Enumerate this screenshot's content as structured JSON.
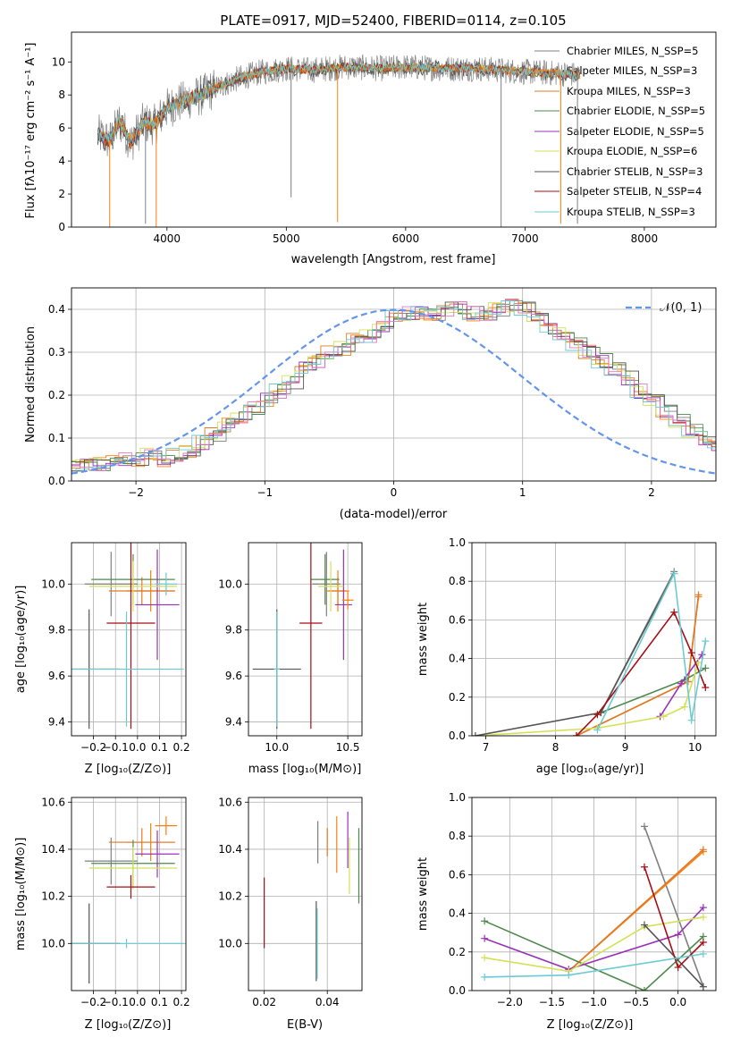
{
  "chart_data": [
    {
      "id": "spectrum",
      "type": "line",
      "title": "PLATE=0917, MJD=52400, FIBERID=0114, z=0.105",
      "xlabel": "wavelength [Angstrom, rest frame]",
      "ylabel": "Flux [fλ10⁻¹⁷ erg cm⁻² s⁻¹ A⁻¹]",
      "xlim": [
        3200,
        8600
      ],
      "ylim": [
        0,
        11.8
      ],
      "xticks": [
        4000,
        5000,
        6000,
        7000,
        8000
      ],
      "yticks": [
        0,
        2,
        4,
        6,
        8,
        10
      ],
      "grid": false,
      "legend_placement": "upper-right",
      "continuum": [
        [
          3420,
          5.6
        ],
        [
          3520,
          5.2
        ],
        [
          3600,
          6.4
        ],
        [
          3700,
          5.1
        ],
        [
          3800,
          6.3
        ],
        [
          3900,
          6.2
        ],
        [
          4000,
          7.2
        ],
        [
          4100,
          7.5
        ],
        [
          4200,
          7.8
        ],
        [
          4300,
          8.0
        ],
        [
          4400,
          8.4
        ],
        [
          4500,
          8.7
        ],
        [
          4600,
          9.0
        ],
        [
          4800,
          9.4
        ],
        [
          5000,
          9.6
        ],
        [
          5200,
          9.5
        ],
        [
          5500,
          9.7
        ],
        [
          5800,
          9.6
        ],
        [
          6000,
          9.7
        ],
        [
          6300,
          9.6
        ],
        [
          6600,
          9.6
        ],
        [
          7000,
          9.4
        ],
        [
          7300,
          9.3
        ],
        [
          7460,
          9.2
        ]
      ],
      "spikes": [
        [
          3520,
          0.0
        ],
        [
          3820,
          0.2
        ],
        [
          3910,
          0.0
        ],
        [
          5040,
          1.8
        ],
        [
          5430,
          0.3
        ],
        [
          6800,
          0.0
        ],
        [
          7300,
          0.2
        ],
        [
          7440,
          0.2
        ]
      ],
      "series": [
        {
          "name": "Chabrier MILES, N_SSP=5"
        },
        {
          "name": "Salpeter MILES, N_SSP=3"
        },
        {
          "name": "Kroupa MILES, N_SSP=3"
        },
        {
          "name": "Chabrier ELODIE, N_SSP=5"
        },
        {
          "name": "Salpeter ELODIE, N_SSP=5"
        },
        {
          "name": "Kroupa ELODIE, N_SSP=6"
        },
        {
          "name": "Chabrier STELIB, N_SSP=3"
        },
        {
          "name": "Salpeter STELIB, N_SSP=4"
        },
        {
          "name": "Kroupa STELIB, N_SSP=3"
        }
      ]
    },
    {
      "id": "residuals",
      "type": "line",
      "xlabel": "(data-model)/error",
      "ylabel": "Normed distribution",
      "xlim": [
        -2.5,
        2.5
      ],
      "ylim": [
        0,
        0.45
      ],
      "xticks": [
        -2,
        -1,
        0,
        1,
        2
      ],
      "yticks": [
        0.0,
        0.1,
        0.2,
        0.3,
        0.4
      ],
      "grid": true,
      "legend_placement": "upper-right",
      "legend": "𝒩(0, 1)",
      "bin_width": 0.1,
      "bins_start": -2.5,
      "histogram_envelope": [
        0.03,
        0.04,
        0.04,
        0.05,
        0.05,
        0.05,
        0.06,
        0.05,
        0.06,
        0.07,
        0.09,
        0.11,
        0.13,
        0.15,
        0.17,
        0.19,
        0.21,
        0.23,
        0.26,
        0.28,
        0.3,
        0.31,
        0.33,
        0.34,
        0.36,
        0.38,
        0.39,
        0.39,
        0.39,
        0.4,
        0.4,
        0.39,
        0.39,
        0.4,
        0.41,
        0.4,
        0.38,
        0.36,
        0.34,
        0.32,
        0.3,
        0.28,
        0.26,
        0.24,
        0.21,
        0.19,
        0.16,
        0.14,
        0.12,
        0.1,
        0.08,
        0.07,
        0.06,
        0.05,
        0.05,
        0.04,
        0.04,
        0.03
      ]
    },
    {
      "id": "age-vs-Z",
      "type": "scatter",
      "xlabel": "Z [log₁₀(Z/Z⊙)]",
      "ylabel": "age  [log₁₀(age/yr)]",
      "xlim": [
        -0.3,
        0.22
      ],
      "ylim": [
        9.34,
        10.18
      ],
      "xticks": [
        -0.2,
        -0.1,
        0.0,
        0.1,
        0.2
      ],
      "yticks": [
        9.4,
        9.6,
        9.8,
        10.0
      ],
      "grid": true,
      "points": [
        {
          "x": -0.12,
          "y": 10.0,
          "xerr": 0.12,
          "yerr": 0.14,
          "series": 0
        },
        {
          "x": 0.06,
          "y": 9.97,
          "xerr": 0.11,
          "yerr": 0.09,
          "series": 1
        },
        {
          "x": 0.02,
          "y": 9.97,
          "xerr": 0.15,
          "yerr": 0.06,
          "series": 2
        },
        {
          "x": -0.02,
          "y": 10.02,
          "xerr": 0.19,
          "yerr": 0.11,
          "series": 3
        },
        {
          "x": 0.09,
          "y": 9.91,
          "xerr": 0.1,
          "yerr": 0.24,
          "series": 4
        },
        {
          "x": -0.02,
          "y": 9.99,
          "xerr": 0.2,
          "yerr": 0.11,
          "series": 5
        },
        {
          "x": -0.22,
          "y": 9.63,
          "xerr": 0.14,
          "yerr": 0.26,
          "series": 6
        },
        {
          "x": -0.03,
          "y": 9.83,
          "xerr": 0.11,
          "yerr": 0.46,
          "series": 7
        },
        {
          "x": -0.05,
          "y": 9.63,
          "xerr": 0.26,
          "yerr": 0.25,
          "series": 8
        },
        {
          "x": 0.13,
          "y": 10.0,
          "xerr": 0.05,
          "yerr": 0.05,
          "series": 8
        }
      ]
    },
    {
      "id": "age-vs-mass",
      "type": "scatter",
      "xlabel": "mass [log₁₀(M/M⊙)]",
      "ylabel": "",
      "xlim": [
        9.8,
        10.6
      ],
      "ylim": [
        9.34,
        10.18
      ],
      "xticks": [
        10.0,
        10.5
      ],
      "yticks": [
        9.4,
        9.6,
        9.8,
        10.0
      ],
      "grid": true,
      "points": [
        {
          "x": 10.35,
          "y": 10.0,
          "xerr": 0.1,
          "yerr": 0.14,
          "series": 0
        },
        {
          "x": 10.43,
          "y": 9.97,
          "xerr": 0.08,
          "yerr": 0.09,
          "series": 1
        },
        {
          "x": 10.43,
          "y": 9.97,
          "xerr": 0.06,
          "yerr": 0.06,
          "series": 2
        },
        {
          "x": 10.34,
          "y": 10.02,
          "xerr": 0.1,
          "yerr": 0.11,
          "series": 3
        },
        {
          "x": 10.47,
          "y": 9.91,
          "xerr": 0.06,
          "yerr": 0.24,
          "series": 4
        },
        {
          "x": 10.38,
          "y": 9.99,
          "xerr": 0.09,
          "yerr": 0.11,
          "series": 5
        },
        {
          "x": 10.0,
          "y": 9.63,
          "xerr": 0.17,
          "yerr": 0.26,
          "series": 6
        },
        {
          "x": 10.24,
          "y": 9.83,
          "xerr": 0.08,
          "yerr": 0.46,
          "series": 7
        },
        {
          "x": 10.0,
          "y": 9.63,
          "xerr": 0.02,
          "yerr": 0.25,
          "series": 8
        },
        {
          "x": 10.5,
          "y": 9.93,
          "xerr": 0.04,
          "yerr": 0.04,
          "series": 1
        }
      ]
    },
    {
      "id": "weight-vs-age",
      "type": "line",
      "xlabel": "age  [log₁₀(age/yr)]",
      "ylabel": "mass weight",
      "xlim": [
        6.8,
        10.3
      ],
      "ylim": [
        0,
        1.0
      ],
      "xticks": [
        7,
        8,
        9,
        10
      ],
      "yticks": [
        0.0,
        0.2,
        0.4,
        0.6,
        0.8,
        1.0
      ],
      "grid": true,
      "series": [
        {
          "series": 0,
          "x": [
            8.65,
            9.7
          ],
          "y": [
            0.12,
            0.85
          ]
        },
        {
          "series": 1,
          "x": [
            8.3,
            9.9,
            10.05
          ],
          "y": [
            0.0,
            0.28,
            0.72
          ]
        },
        {
          "series": 2,
          "x": [
            8.3,
            9.9,
            10.05
          ],
          "y": [
            0.0,
            0.28,
            0.73
          ]
        },
        {
          "series": 3,
          "x": [
            8.65,
            9.85,
            10.15
          ],
          "y": [
            0.12,
            0.29,
            0.35
          ]
        },
        {
          "series": 4,
          "x": [
            9.5,
            9.8,
            10.1
          ],
          "y": [
            0.1,
            0.27,
            0.42
          ]
        },
        {
          "series": 5,
          "x": [
            6.85,
            8.6,
            9.55,
            9.85,
            10.05
          ],
          "y": [
            0.0,
            0.04,
            0.1,
            0.15,
            0.38
          ]
        },
        {
          "series": 6,
          "x": [
            6.85,
            8.65,
            9.7
          ],
          "y": [
            0.0,
            0.12,
            0.84
          ]
        },
        {
          "series": 7,
          "x": [
            8.3,
            8.6,
            9.7,
            9.95,
            10.15
          ],
          "y": [
            0.0,
            0.11,
            0.64,
            0.43,
            0.25
          ]
        },
        {
          "series": 8,
          "x": [
            8.6,
            9.7,
            9.95,
            10.15
          ],
          "y": [
            0.03,
            0.84,
            0.08,
            0.49
          ]
        }
      ]
    },
    {
      "id": "mass-vs-Z",
      "type": "scatter",
      "xlabel": "Z [log₁₀(Z/Z⊙)]",
      "ylabel": "mass [log₁₀(M/M⊙)]",
      "xlim": [
        -0.3,
        0.22
      ],
      "ylim": [
        9.8,
        10.62
      ],
      "xticks": [
        -0.2,
        -0.1,
        0.0,
        0.1,
        0.2
      ],
      "yticks": [
        10.0,
        10.2,
        10.4,
        10.6
      ],
      "grid": true,
      "points": [
        {
          "x": -0.12,
          "y": 10.35,
          "xerr": 0.12,
          "yerr": 0.1,
          "series": 0
        },
        {
          "x": 0.06,
          "y": 10.43,
          "xerr": 0.11,
          "yerr": 0.08,
          "series": 1
        },
        {
          "x": 0.02,
          "y": 10.43,
          "xerr": 0.15,
          "yerr": 0.06,
          "series": 2
        },
        {
          "x": -0.02,
          "y": 10.34,
          "xerr": 0.19,
          "yerr": 0.1,
          "series": 3
        },
        {
          "x": 0.09,
          "y": 10.38,
          "xerr": 0.1,
          "yerr": 0.1,
          "series": 4
        },
        {
          "x": -0.02,
          "y": 10.32,
          "xerr": 0.2,
          "yerr": 0.09,
          "series": 5
        },
        {
          "x": -0.22,
          "y": 10.0,
          "xerr": 0.14,
          "yerr": 0.17,
          "series": 6
        },
        {
          "x": -0.03,
          "y": 10.24,
          "xerr": 0.11,
          "yerr": 0.05,
          "series": 7
        },
        {
          "x": -0.05,
          "y": 10.0,
          "xerr": 0.26,
          "yerr": 0.02,
          "series": 8
        },
        {
          "x": 0.13,
          "y": 10.5,
          "xerr": 0.05,
          "yerr": 0.04,
          "series": 1
        }
      ]
    },
    {
      "id": "mass-vs-ebv",
      "type": "scatter",
      "xlabel": "E(B-V)",
      "ylabel": "",
      "xlim": [
        0.015,
        0.051
      ],
      "ylim": [
        9.8,
        10.62
      ],
      "xticks": [
        0.02,
        0.04
      ],
      "yticks": [
        10.0,
        10.2,
        10.4,
        10.6
      ],
      "grid": true,
      "points": [
        {
          "x": 0.02,
          "y": 10.13,
          "yerr": 0.15,
          "series": 7
        },
        {
          "x": 0.0365,
          "y": 10.01,
          "yerr": 0.17,
          "series": 6
        },
        {
          "x": 0.0368,
          "y": 10.0,
          "yerr": 0.15,
          "series": 8
        },
        {
          "x": 0.037,
          "y": 10.43,
          "yerr": 0.09,
          "series": 0
        },
        {
          "x": 0.04,
          "y": 10.43,
          "yerr": 0.06,
          "series": 2
        },
        {
          "x": 0.043,
          "y": 10.42,
          "yerr": 0.12,
          "series": 1
        },
        {
          "x": 0.0465,
          "y": 10.44,
          "yerr": 0.12,
          "series": 4
        },
        {
          "x": 0.047,
          "y": 10.33,
          "yerr": 0.12,
          "series": 5
        },
        {
          "x": 0.05,
          "y": 10.33,
          "yerr": 0.16,
          "series": 3
        }
      ]
    },
    {
      "id": "weight-vs-Z",
      "type": "line",
      "xlabel": "Z [log₁₀(Z/Z⊙)]",
      "ylabel": "mass weight",
      "xlim": [
        -2.45,
        0.45
      ],
      "ylim": [
        0,
        1.0
      ],
      "xticks": [
        -2.0,
        -1.5,
        -1.0,
        -0.5,
        0.0
      ],
      "yticks": [
        0.0,
        0.2,
        0.4,
        0.6,
        0.8,
        1.0
      ],
      "grid": true,
      "series": [
        {
          "series": 0,
          "x": [
            -0.4,
            0.3
          ],
          "y": [
            0.85,
            0.02
          ]
        },
        {
          "series": 1,
          "x": [
            -1.3,
            0.3
          ],
          "y": [
            0.1,
            0.72
          ]
        },
        {
          "series": 2,
          "x": [
            -1.3,
            0.3
          ],
          "y": [
            0.1,
            0.73
          ]
        },
        {
          "series": 3,
          "x": [
            -2.3,
            -0.4,
            0.3
          ],
          "y": [
            0.36,
            0.0,
            0.28
          ]
        },
        {
          "series": 4,
          "x": [
            -2.3,
            -1.3,
            0.0,
            0.3
          ],
          "y": [
            0.27,
            0.11,
            0.29,
            0.43
          ]
        },
        {
          "series": 5,
          "x": [
            -2.3,
            -1.3,
            -0.4,
            0.3
          ],
          "y": [
            0.17,
            0.1,
            0.33,
            0.38
          ]
        },
        {
          "series": 6,
          "x": [
            -0.4,
            0.3
          ],
          "y": [
            0.34,
            0.02
          ]
        },
        {
          "series": 7,
          "x": [
            -0.4,
            0.0,
            0.3
          ],
          "y": [
            0.64,
            0.12,
            0.25
          ]
        },
        {
          "series": 8,
          "x": [
            -2.3,
            -1.3,
            0.3
          ],
          "y": [
            0.07,
            0.08,
            0.19
          ]
        }
      ]
    }
  ],
  "colors": [
    "#7f7f7f",
    "#ff7f0e",
    "#e07a27",
    "#4e8a4e",
    "#9b30b8",
    "#d4e157",
    "#555555",
    "#a50f15",
    "#6bcbd3"
  ],
  "colors_extra": {
    "kroupa_miles_alt": "#e377c2",
    "salpeter_stelib_blue": "#5b7fd6",
    "normal_curve": "#6495ed"
  }
}
